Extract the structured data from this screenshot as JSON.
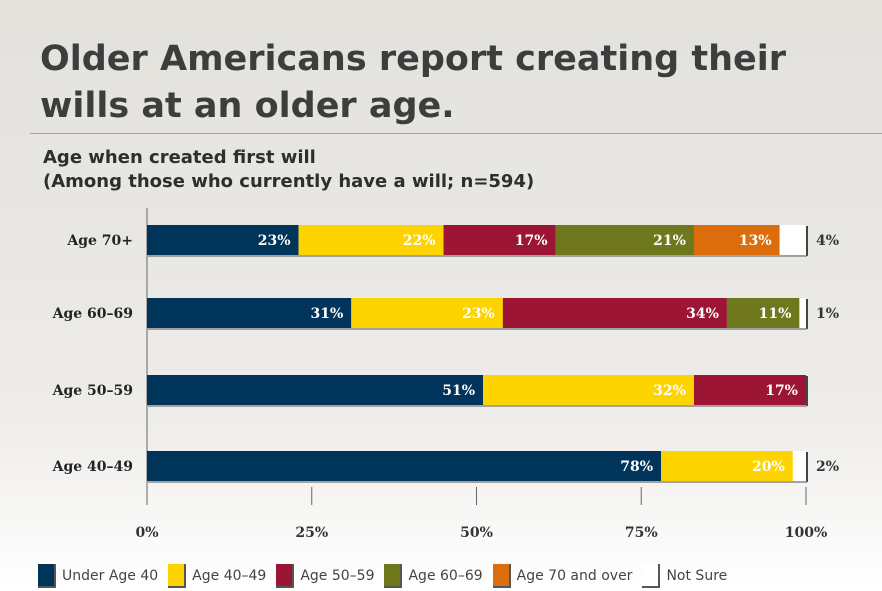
{
  "title": "Older Americans report creating their wills at an older age.",
  "subtitle_line1": "Age when created first will",
  "subtitle_line2": "(Among those who currently have a will; n=594)",
  "colors": {
    "Under Age 40": "#00345a",
    "Age 40-49": "#fdd400",
    "Age 50-59": "#9c1534",
    "Age 60-69": "#70781e",
    "Age 70 and over": "#dc6d0c",
    "Not Sure": "#ffffff"
  },
  "chart_data": {
    "type": "bar",
    "orientation": "horizontal",
    "stacked": true,
    "categories": [
      "Age 70+",
      "Age 60–69",
      "Age 50–59",
      "Age 40–49"
    ],
    "xlim": [
      0,
      100
    ],
    "xticks": [
      "0%",
      "25%",
      "50%",
      "75%",
      "100%"
    ],
    "legend_position": "bottom",
    "series": [
      {
        "name": "Under Age 40",
        "values": [
          23,
          31,
          51,
          78
        ]
      },
      {
        "name": "Age 40–49",
        "values": [
          22,
          23,
          32,
          20
        ]
      },
      {
        "name": "Age 50–59",
        "values": [
          17,
          34,
          17,
          0
        ]
      },
      {
        "name": "Age 60–69",
        "values": [
          21,
          11,
          0,
          0
        ]
      },
      {
        "name": "Age 70 and over",
        "values": [
          13,
          0,
          0,
          0
        ]
      },
      {
        "name": "Not Sure",
        "values": [
          4,
          1,
          0,
          2
        ]
      }
    ],
    "data_labels": [
      [
        "23%",
        "22%",
        "17%",
        "21%",
        "13%",
        "4%"
      ],
      [
        "31%",
        "23%",
        "34%",
        "11%",
        "",
        "1%"
      ],
      [
        "51%",
        "32%",
        "17%",
        "",
        "",
        ""
      ],
      [
        "78%",
        "20%",
        "",
        "",
        "",
        "2%"
      ]
    ]
  }
}
